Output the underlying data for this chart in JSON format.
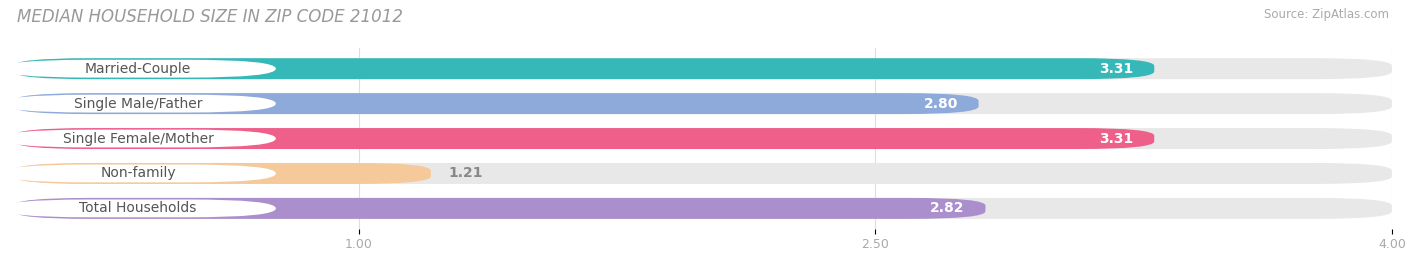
{
  "title": "MEDIAN HOUSEHOLD SIZE IN ZIP CODE 21012",
  "source": "Source: ZipAtlas.com",
  "categories": [
    "Married-Couple",
    "Single Male/Father",
    "Single Female/Mother",
    "Non-family",
    "Total Households"
  ],
  "values": [
    3.31,
    2.8,
    3.31,
    1.21,
    2.82
  ],
  "bar_colors": [
    "#36b8b8",
    "#8eaadb",
    "#ee5f8a",
    "#f5c99a",
    "#aa8fcc"
  ],
  "bar_bg_color": "#e8e8e8",
  "value_label_outside": [
    false,
    false,
    false,
    true,
    false
  ],
  "xmin": 0.0,
  "xmax": 4.0,
  "xticks": [
    1.0,
    2.5,
    4.0
  ],
  "title_color": "#999999",
  "source_color": "#aaaaaa",
  "title_fontsize": 12,
  "bar_height": 0.6,
  "bar_label_fontsize": 10,
  "category_fontsize": 10,
  "tick_fontsize": 9,
  "pill_color": "#ffffff",
  "pill_text_color": "#555555",
  "value_inside_color": "#ffffff",
  "value_outside_color": "#888888"
}
